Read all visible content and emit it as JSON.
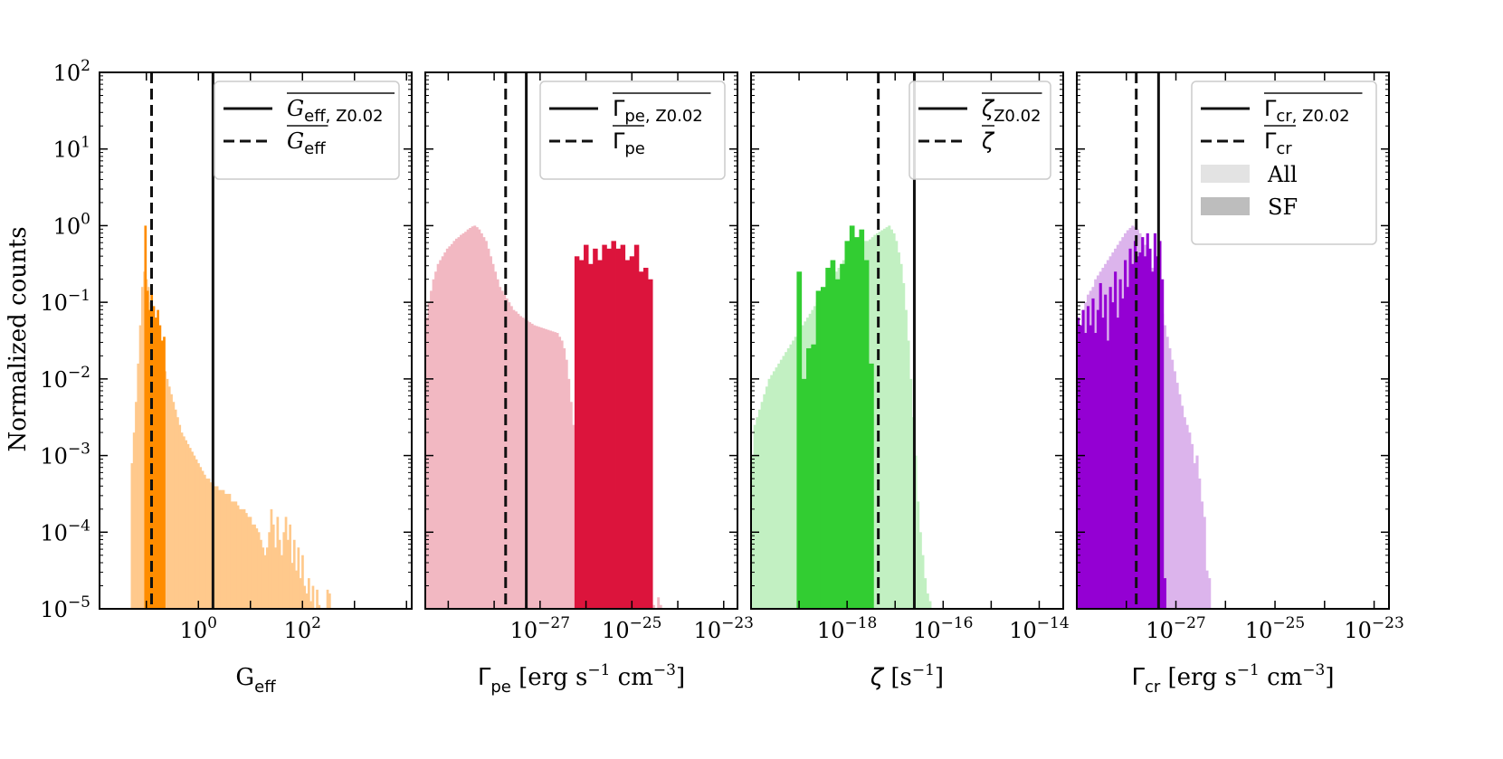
{
  "figure": {
    "ylabel": "Normalized counts",
    "y_ticks": [
      "10",
      "10",
      "10",
      "10",
      "10",
      "10",
      "10",
      "10"
    ],
    "y_tick_exponents": [
      "2",
      "1",
      "0",
      "−1",
      "−2",
      "−3",
      "−4",
      "−5"
    ]
  },
  "chart_data": [
    {
      "type": "bar",
      "title": "",
      "xlabel_main": "G",
      "xlabel_sub": "eff",
      "xscale": "log",
      "xlim_log10": [
        -1.9,
        4.1
      ],
      "ylim_log10": [
        -5,
        2
      ],
      "x_ticks": [
        {
          "base": "10",
          "exp": "0",
          "log": 0
        },
        {
          "base": "10",
          "exp": "2",
          "log": 2
        }
      ],
      "colors": {
        "all": "#ffc98c",
        "sf": "#ff8c00"
      },
      "series": [
        {
          "name": "All",
          "bins_log10_start": -1.3,
          "bin_width": 0.04,
          "values_log10": [
            -3.1,
            -2.7,
            -2.3,
            -1.8,
            -1.3,
            -0.8,
            -0.6,
            -0.7,
            -0.8,
            -1.0,
            -1.2,
            -1.4,
            -1.5,
            -1.6,
            -1.7,
            -1.8,
            -1.9,
            -2.0,
            -2.1,
            -2.2,
            -2.3,
            -2.4,
            -2.5,
            -2.6,
            -2.7,
            -2.75,
            -2.8,
            -2.85,
            -2.9,
            -2.95,
            -3.0,
            -3.05,
            -3.1,
            -3.15,
            -3.2,
            -3.25,
            -3.3,
            -3.3,
            -3.35,
            -3.35,
            -3.4,
            -3.4,
            -3.45,
            -3.45,
            -3.45,
            -3.5,
            -3.5,
            -3.5,
            -3.6,
            -3.6,
            -3.6,
            -3.65,
            -3.7,
            -3.7,
            -3.7,
            -3.75,
            -3.8,
            -3.8,
            -3.9,
            -3.9,
            -3.95,
            -4.0,
            -4.1,
            -4.2,
            -4.3,
            -4.2,
            -4.0,
            -3.7,
            -3.9,
            -4.2,
            -3.8,
            -4.1,
            -4.3,
            -4.0,
            -3.8,
            -4.1,
            -3.9,
            -4.4,
            -4.1,
            -4.5,
            -4.2,
            -4.6,
            -4.3,
            -4.7,
            -4.8,
            -4.6,
            -4.9,
            -4.7,
            -5.0,
            -4.75,
            -4.95,
            -5.0,
            -5.0,
            -5.0,
            -4.75,
            -4.8,
            -5.0
          ]
        },
        {
          "name": "SF",
          "bars": [
            [
              -1.04,
              0.0
            ],
            [
              -1.0,
              -0.85
            ],
            [
              -0.96,
              -1.1
            ],
            [
              -0.92,
              -0.9
            ],
            [
              -0.88,
              -1.05
            ],
            [
              -0.84,
              -1.2
            ],
            [
              -0.8,
              -1.1
            ],
            [
              -0.76,
              -1.3
            ],
            [
              -0.72,
              -1.5
            ],
            [
              -0.68,
              -1.45
            ]
          ],
          "bar_width": 0.04
        }
      ],
      "vlines": [
        {
          "name": "mean_Z0.02",
          "style": "solid",
          "x_log10": 0.28
        },
        {
          "name": "mean",
          "style": "dashed",
          "x_log10": -0.9
        }
      ],
      "legend": {
        "position": "top-right",
        "entries": [
          {
            "style": "solid",
            "main": "G",
            "sub": "eff, Z0.02"
          },
          {
            "style": "dashed",
            "main": "G",
            "sub": "eff"
          }
        ]
      }
    },
    {
      "type": "bar",
      "xlabel_main": "Γ",
      "xlabel_sub": "pe",
      "xlabel_units": " [erg s",
      "xlabel_exp1": "−1",
      "xlabel_units2": " cm",
      "xlabel_exp2": "−3",
      "xlabel_end": "]",
      "xscale": "log",
      "xlim_log10": [
        -29.5,
        -22.7
      ],
      "ylim_log10": [
        -5,
        2
      ],
      "x_ticks": [
        {
          "base": "10",
          "exp": "−27",
          "log": -27
        },
        {
          "base": "10",
          "exp": "−25",
          "log": -25
        },
        {
          "base": "10",
          "exp": "−23",
          "log": -23
        }
      ],
      "colors": {
        "all": "#f2b8c2",
        "sf": "#dc143c"
      },
      "series": [
        {
          "name": "All",
          "bins_log10_start": -29.5,
          "bin_width": 0.05,
          "values_log10": [
            -1.2,
            -1.0,
            -0.85,
            -0.7,
            -0.6,
            -0.5,
            -0.45,
            -0.4,
            -0.35,
            -0.3,
            -0.27,
            -0.24,
            -0.2,
            -0.17,
            -0.15,
            -0.12,
            -0.1,
            -0.08,
            -0.05,
            -0.03,
            -0.01,
            0.0,
            -0.02,
            -0.05,
            -0.1,
            -0.15,
            -0.2,
            -0.3,
            -0.4,
            -0.5,
            -0.6,
            -0.7,
            -0.8,
            -0.85,
            -0.9,
            -0.95,
            -1.0,
            -1.05,
            -1.1,
            -1.12,
            -1.15,
            -1.18,
            -1.2,
            -1.22,
            -1.24,
            -1.26,
            -1.28,
            -1.3,
            -1.31,
            -1.32,
            -1.33,
            -1.34,
            -1.35,
            -1.36,
            -1.37,
            -1.38,
            -1.39,
            -1.4,
            -1.45,
            -1.5,
            -1.6,
            -1.75,
            -2.0,
            -2.3,
            -2.6,
            -2.9,
            -3.1,
            -3.2,
            -3.3,
            -3.25,
            -3.3,
            -3.4,
            -3.35,
            -3.4,
            -3.3,
            -3.35,
            -3.4,
            -3.45,
            -3.3,
            -3.5,
            -3.4,
            -3.45,
            -3.5,
            -3.6,
            -3.5,
            -3.7,
            -3.8,
            -3.75,
            -3.9,
            -4.1,
            -4.0,
            -4.2,
            -4.4,
            -4.5,
            -4.3,
            -4.6,
            -4.7,
            -4.9,
            -4.8,
            -4.95,
            -5.0,
            -4.85,
            -4.95,
            -5.0,
            -5.0,
            -5.0
          ]
        },
        {
          "name": "SF",
          "bins_log10_start": -26.25,
          "bin_width": 0.1,
          "values_log10": [
            -0.4,
            -0.45,
            -0.25,
            -0.5,
            -0.3,
            -0.45,
            -0.25,
            -0.3,
            -0.2,
            -0.3,
            -0.25,
            -0.45,
            -0.4,
            -0.25,
            -0.6,
            -0.55,
            -0.7
          ]
        }
      ],
      "vlines": [
        {
          "name": "mean_Z0.02",
          "style": "solid",
          "x_log10": -27.3
        },
        {
          "name": "mean",
          "style": "dashed",
          "x_log10": -27.75
        }
      ],
      "legend": {
        "position": "top-right",
        "entries": [
          {
            "style": "solid",
            "main": "Γ",
            "sub": "pe, Z0.02"
          },
          {
            "style": "dashed",
            "main": "Γ",
            "sub": "pe"
          }
        ]
      }
    },
    {
      "type": "bar",
      "xlabel_main": "ζ",
      "xlabel_units": " [s",
      "xlabel_exp1": "−1",
      "xlabel_end": "]",
      "xscale": "log",
      "xlim_log10": [
        -20.0,
        -13.5
      ],
      "ylim_log10": [
        -5,
        2
      ],
      "x_ticks": [
        {
          "base": "10",
          "exp": "−18",
          "log": -18
        },
        {
          "base": "10",
          "exp": "−16",
          "log": -16
        },
        {
          "base": "10",
          "exp": "−14",
          "log": -14
        }
      ],
      "colors": {
        "all": "#c2f0c2",
        "sf": "#32cd32"
      },
      "series": [
        {
          "name": "All",
          "bins_log10_start": -20.0,
          "bin_width": 0.05,
          "values_log10": [
            -3.0,
            -2.6,
            -2.5,
            -2.4,
            -2.3,
            -2.2,
            -2.1,
            -2.0,
            -1.95,
            -1.9,
            -1.85,
            -1.8,
            -1.75,
            -1.7,
            -1.65,
            -1.6,
            -1.55,
            -1.5,
            -1.45,
            -1.4,
            -1.35,
            -1.3,
            -1.25,
            -1.2,
            -1.15,
            -1.1,
            -1.05,
            -1.0,
            -0.95,
            -0.9,
            -0.85,
            -0.8,
            -0.75,
            -0.7,
            -0.65,
            -0.6,
            -0.55,
            -0.5,
            -0.45,
            -0.42,
            -0.38,
            -0.35,
            -0.3,
            -0.28,
            -0.26,
            -0.24,
            -0.22,
            -0.2,
            -0.2,
            -0.18,
            -0.15,
            -0.12,
            -0.1,
            -0.08,
            -0.06,
            -0.04,
            -0.02,
            0.0,
            -0.05,
            -0.1,
            -0.2,
            -0.35,
            -0.5,
            -0.75,
            -1.1,
            -1.5,
            -2.0,
            -2.5,
            -3.0,
            -3.6,
            -4.0,
            -4.3,
            -4.6,
            -4.8,
            -4.9,
            -5.0
          ]
        },
        {
          "name": "SF",
          "bars": [
            [
              -19.05,
              -0.6
            ],
            [
              -18.95,
              -2.0
            ],
            [
              -18.85,
              -1.6
            ],
            [
              -18.75,
              -1.55
            ],
            [
              -18.65,
              -0.85
            ],
            [
              -18.55,
              -0.8
            ],
            [
              -18.45,
              -0.55
            ],
            [
              -18.35,
              -0.45
            ],
            [
              -18.25,
              -0.7
            ],
            [
              -18.15,
              -0.5
            ],
            [
              -18.05,
              -0.2
            ],
            [
              -17.95,
              -0.0
            ],
            [
              -17.85,
              -0.15
            ],
            [
              -17.75,
              -0.05
            ],
            [
              -17.65,
              -0.45
            ],
            [
              -17.55,
              -1.8
            ]
          ],
          "bar_width": 0.1
        }
      ],
      "vlines": [
        {
          "name": "mean_Z0.02",
          "style": "solid",
          "x_log10": -16.6
        },
        {
          "name": "mean",
          "style": "dashed",
          "x_log10": -17.35
        }
      ],
      "legend": {
        "position": "top-right",
        "entries": [
          {
            "style": "solid",
            "main": "ζ",
            "sub": "Z0.02"
          },
          {
            "style": "dashed",
            "main": "ζ",
            "sub": ""
          }
        ]
      }
    },
    {
      "type": "bar",
      "xlabel_main": "Γ",
      "xlabel_sub": "cr",
      "xlabel_units": " [erg s",
      "xlabel_exp1": "−1",
      "xlabel_units2": " cm",
      "xlabel_exp2": "−3",
      "xlabel_end": "]",
      "xscale": "log",
      "xlim_log10": [
        -29.0,
        -22.7
      ],
      "ylim_log10": [
        -5,
        2
      ],
      "x_ticks": [
        {
          "base": "10",
          "exp": "−27",
          "log": -27
        },
        {
          "base": "10",
          "exp": "−25",
          "log": -25
        },
        {
          "base": "10",
          "exp": "−23",
          "log": -23
        }
      ],
      "colors": {
        "all": "#dcb4ec",
        "sf": "#9400d3"
      },
      "series": [
        {
          "name": "All",
          "bins_log10_start": -29.0,
          "bin_width": 0.05,
          "values_log10": [
            -1.5,
            -1.3,
            -1.15,
            -1.0,
            -0.9,
            -0.85,
            -0.8,
            -0.7,
            -0.65,
            -0.6,
            -0.55,
            -0.5,
            -0.45,
            -0.4,
            -0.35,
            -0.3,
            -0.25,
            -0.2,
            -0.15,
            -0.1,
            -0.06,
            -0.03,
            0.0,
            -0.02,
            -0.05,
            -0.1,
            -0.15,
            -0.25,
            -0.35,
            -0.45,
            -0.55,
            -0.7,
            -0.85,
            -1.0,
            -1.15,
            -1.3,
            -1.45,
            -1.6,
            -1.75,
            -1.9,
            -2.05,
            -2.2,
            -2.35,
            -2.5,
            -2.6,
            -2.7,
            -2.85,
            -3.1,
            -3.0,
            -3.3,
            -3.6,
            -3.8,
            -4.5,
            -4.6,
            -5.0
          ]
        },
        {
          "name": "SF",
          "bins_log10_start": -29.0,
          "bin_width": 0.05,
          "values_log10": [
            -1.2,
            -1.3,
            -1.1,
            -1.4,
            -1.05,
            -1.3,
            -0.95,
            -1.4,
            -1.1,
            -0.75,
            -1.2,
            -0.9,
            -1.5,
            -0.8,
            -1.0,
            -0.6,
            -1.2,
            -0.7,
            -0.95,
            -0.45,
            -0.8,
            -0.3,
            -0.5,
            -0.2,
            -0.4,
            -0.35,
            -0.15,
            -0.4,
            -0.1,
            -0.3,
            -0.6,
            -0.1,
            -0.4,
            -0.2,
            -0.7,
            -4.6
          ]
        }
      ],
      "vlines": [
        {
          "name": "mean_Z0.02",
          "style": "solid",
          "x_log10": -27.35
        },
        {
          "name": "mean",
          "style": "dashed",
          "x_log10": -27.8
        }
      ],
      "legend": {
        "position": "top-right",
        "entries": [
          {
            "style": "solid",
            "main": "Γ",
            "sub": "cr, Z0.02"
          },
          {
            "style": "dashed",
            "main": "Γ",
            "sub": "cr"
          },
          {
            "style": "patch-light",
            "label": "All"
          },
          {
            "style": "patch-dark",
            "label": "SF"
          }
        ]
      }
    }
  ]
}
